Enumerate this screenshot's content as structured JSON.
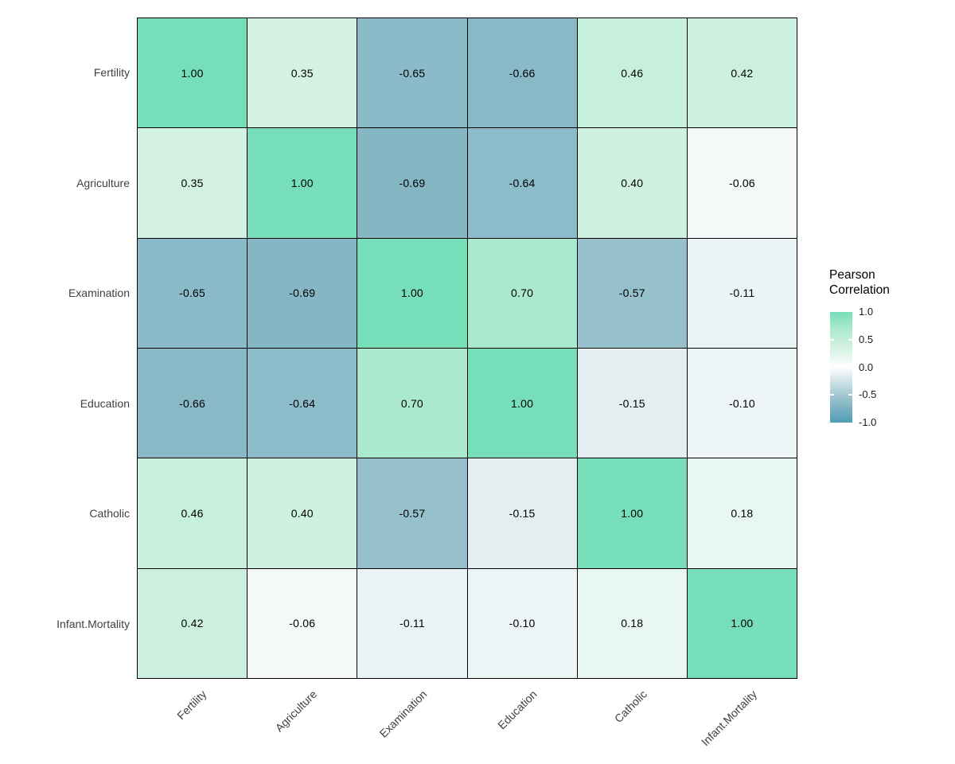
{
  "chart_data": {
    "type": "heatmap",
    "title": "",
    "variables": [
      "Fertility",
      "Agriculture",
      "Examination",
      "Education",
      "Catholic",
      "Infant.Mortality"
    ],
    "matrix": [
      [
        1.0,
        0.35,
        -0.65,
        -0.66,
        0.46,
        0.42
      ],
      [
        0.35,
        1.0,
        -0.69,
        -0.64,
        0.4,
        -0.06
      ],
      [
        -0.65,
        -0.69,
        1.0,
        0.7,
        -0.57,
        -0.11
      ],
      [
        -0.66,
        -0.64,
        0.7,
        1.0,
        -0.15,
        -0.1
      ],
      [
        0.46,
        0.4,
        -0.57,
        -0.15,
        1.0,
        0.18
      ],
      [
        0.42,
        -0.06,
        -0.11,
        -0.1,
        0.18,
        1.0
      ]
    ],
    "value_decimals": 2,
    "legend": {
      "title_lines": [
        "Pearson",
        "Correlation"
      ],
      "position": "right",
      "tick_labels": [
        "1.0",
        "0.5",
        "0.0",
        "-0.5",
        "-1.0"
      ],
      "tick_values": [
        1.0,
        0.5,
        0.0,
        -0.5,
        -1.0
      ],
      "notch_values": [
        0.5,
        -0.5
      ],
      "range": [
        -1.0,
        1.0
      ]
    },
    "colors": {
      "gradient_stops": [
        {
          "v": -1.0,
          "c": "#4E9EB5"
        },
        {
          "v": -0.69,
          "c": "#84B6C4"
        },
        {
          "v": -0.65,
          "c": "#8BBAC8"
        },
        {
          "v": -0.57,
          "c": "#96C1CC"
        },
        {
          "v": -0.15,
          "c": "#E3EEF1"
        },
        {
          "v": 0.0,
          "c": "#FFFFFF"
        },
        {
          "v": 0.18,
          "c": "#E8F7EF"
        },
        {
          "v": 0.35,
          "c": "#D4F2E4"
        },
        {
          "v": 0.7,
          "c": "#ABE9CE"
        },
        {
          "v": 1.0,
          "c": "#76DEB8"
        }
      ],
      "cell_border": "#000000",
      "cell_text": "#000000",
      "axis_text": "#404040",
      "background": "#FFFFFF"
    },
    "grid_lines": true
  }
}
